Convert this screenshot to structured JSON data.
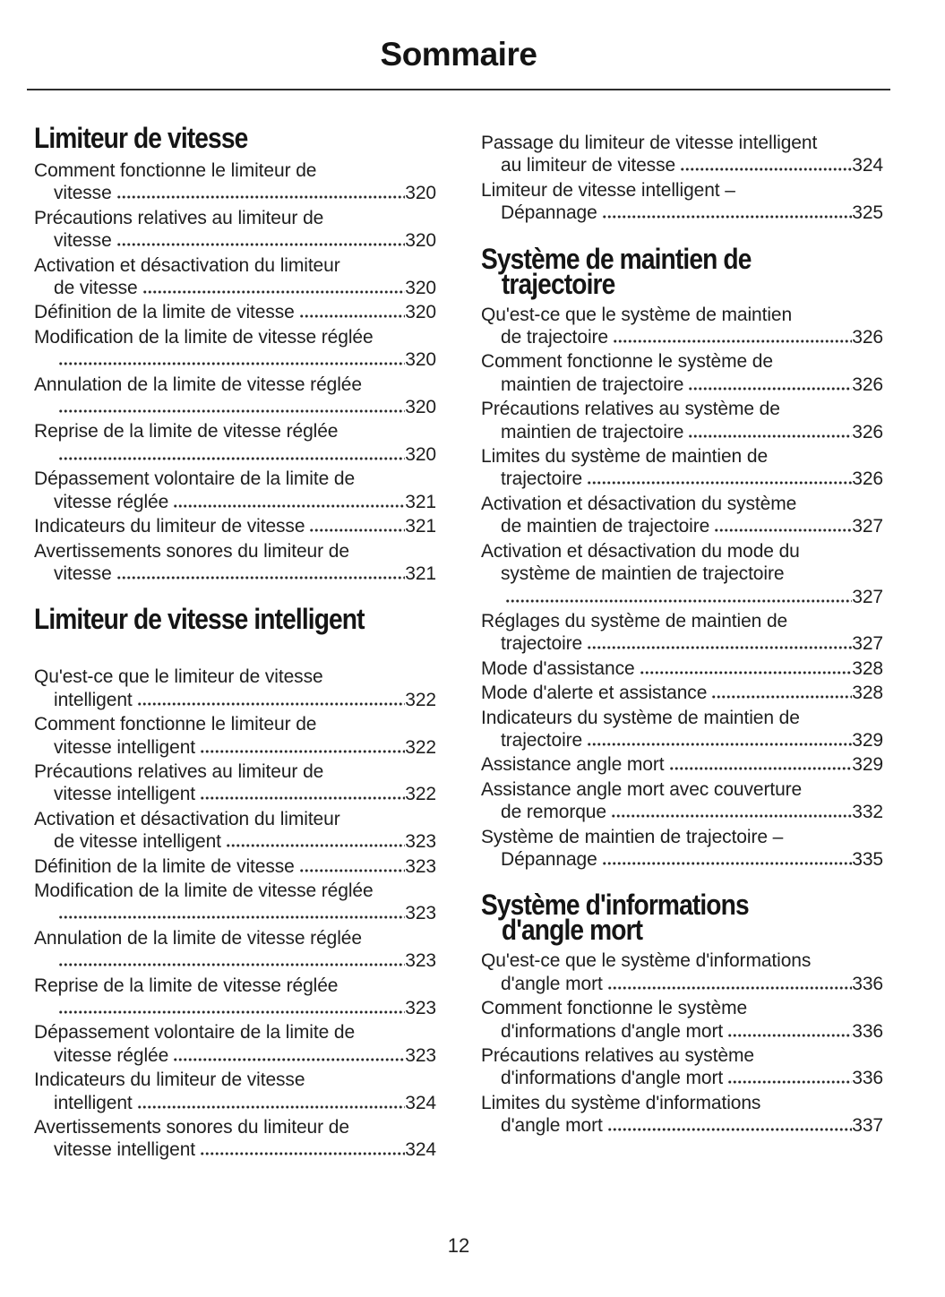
{
  "title": "Sommaire",
  "page_number": "12",
  "colors": {
    "background": "#ffffff",
    "text": "#1e1e1e",
    "divider": "#2e2e2e"
  },
  "columns": {
    "left": [
      {
        "type": "heading",
        "lines": [
          "Limiteur de vitesse"
        ],
        "first": true
      },
      {
        "type": "entry",
        "lines": [
          "Comment fonctionne le limiteur de",
          "vitesse"
        ],
        "page": "320"
      },
      {
        "type": "entry",
        "lines": [
          "Précautions relatives au limiteur de",
          "vitesse"
        ],
        "page": "320"
      },
      {
        "type": "entry",
        "lines": [
          "Activation et désactivation du limiteur",
          "de vitesse"
        ],
        "page": "320"
      },
      {
        "type": "entry",
        "lines": [
          "Définition de la limite de vitesse"
        ],
        "page": "320"
      },
      {
        "type": "entry",
        "lines": [
          "Modification de la limite de vitesse réglée",
          ""
        ],
        "page": "320"
      },
      {
        "type": "entry",
        "lines": [
          "Annulation de la limite de vitesse réglée",
          ""
        ],
        "page": "320"
      },
      {
        "type": "entry",
        "lines": [
          "Reprise de la limite de vitesse réglée",
          ""
        ],
        "page": "320"
      },
      {
        "type": "entry",
        "lines": [
          "Dépassement volontaire de la limite de",
          "vitesse réglée"
        ],
        "page": "321"
      },
      {
        "type": "entry",
        "lines": [
          "Indicateurs du limiteur de vitesse"
        ],
        "page": "321"
      },
      {
        "type": "entry",
        "lines": [
          "Avertissements sonores du limiteur de",
          "vitesse"
        ],
        "page": "321"
      },
      {
        "type": "heading",
        "lines": [
          "Limiteur de vitesse intelligent"
        ],
        "extra_gap": true
      },
      {
        "type": "entry",
        "lines": [
          "Qu'est-ce que le limiteur de vitesse",
          "intelligent"
        ],
        "page": "322"
      },
      {
        "type": "entry",
        "lines": [
          "Comment fonctionne le limiteur de",
          "vitesse intelligent"
        ],
        "page": "322"
      },
      {
        "type": "entry",
        "lines": [
          "Précautions relatives au limiteur de",
          "vitesse intelligent"
        ],
        "page": "322"
      },
      {
        "type": "entry",
        "lines": [
          "Activation et désactivation du limiteur",
          "de vitesse intelligent"
        ],
        "page": "323"
      },
      {
        "type": "entry",
        "lines": [
          "Définition de la limite de vitesse"
        ],
        "page": "323"
      },
      {
        "type": "entry",
        "lines": [
          "Modification de la limite de vitesse réglée",
          ""
        ],
        "page": "323"
      },
      {
        "type": "entry",
        "lines": [
          "Annulation de la limite de vitesse réglée",
          ""
        ],
        "page": "323"
      },
      {
        "type": "entry",
        "lines": [
          "Reprise de la limite de vitesse réglée",
          ""
        ],
        "page": "323"
      },
      {
        "type": "entry",
        "lines": [
          "Dépassement volontaire de la limite de",
          "vitesse réglée"
        ],
        "page": "323"
      },
      {
        "type": "entry",
        "lines": [
          "Indicateurs du limiteur de vitesse",
          "intelligent"
        ],
        "page": "324"
      },
      {
        "type": "entry",
        "lines": [
          "Avertissements sonores du limiteur de",
          "vitesse intelligent"
        ],
        "page": "324"
      }
    ],
    "right": [
      {
        "type": "entry",
        "lines": [
          "Passage du limiteur de vitesse intelligent",
          "au limiteur de vitesse"
        ],
        "page": "324"
      },
      {
        "type": "entry",
        "lines": [
          "Limiteur de vitesse intelligent –",
          "Dépannage"
        ],
        "page": "325"
      },
      {
        "type": "heading",
        "lines": [
          "Système de maintien de",
          "trajectoire"
        ]
      },
      {
        "type": "entry",
        "lines": [
          "Qu'est-ce que le système de maintien",
          "de trajectoire"
        ],
        "page": "326"
      },
      {
        "type": "entry",
        "lines": [
          "Comment fonctionne le système de",
          "maintien de trajectoire"
        ],
        "page": "326"
      },
      {
        "type": "entry",
        "lines": [
          "Précautions relatives au système de",
          "maintien de trajectoire"
        ],
        "page": "326"
      },
      {
        "type": "entry",
        "lines": [
          "Limites du système de maintien de",
          "trajectoire"
        ],
        "page": "326"
      },
      {
        "type": "entry",
        "lines": [
          "Activation et désactivation du système",
          "de maintien de trajectoire"
        ],
        "page": "327"
      },
      {
        "type": "entry",
        "lines": [
          "Activation et désactivation du mode du",
          "système de maintien de trajectoire",
          ""
        ],
        "page": "327"
      },
      {
        "type": "entry",
        "lines": [
          "Réglages du système de maintien de",
          "trajectoire"
        ],
        "page": "327"
      },
      {
        "type": "entry",
        "lines": [
          "Mode d'assistance"
        ],
        "page": "328"
      },
      {
        "type": "entry",
        "lines": [
          "Mode d'alerte et assistance"
        ],
        "page": "328"
      },
      {
        "type": "entry",
        "lines": [
          "Indicateurs du système de maintien de",
          "trajectoire"
        ],
        "page": "329"
      },
      {
        "type": "entry",
        "lines": [
          "Assistance angle mort"
        ],
        "page": "329"
      },
      {
        "type": "entry",
        "lines": [
          "Assistance angle mort avec couverture",
          "de remorque"
        ],
        "page": "332"
      },
      {
        "type": "entry",
        "lines": [
          "Système de maintien de trajectoire –",
          "Dépannage"
        ],
        "page": "335"
      },
      {
        "type": "heading",
        "lines": [
          "Système d'informations",
          "d'angle mort"
        ]
      },
      {
        "type": "entry",
        "lines": [
          "Qu'est-ce que le système d'informations",
          "d'angle mort"
        ],
        "page": "336"
      },
      {
        "type": "entry",
        "lines": [
          "Comment fonctionne le système",
          "d'informations d'angle mort"
        ],
        "page": "336"
      },
      {
        "type": "entry",
        "lines": [
          "Précautions relatives au système",
          "d'informations d'angle mort"
        ],
        "page": "336"
      },
      {
        "type": "entry",
        "lines": [
          "Limites du système d'informations",
          "d'angle mort"
        ],
        "page": "337"
      }
    ]
  }
}
